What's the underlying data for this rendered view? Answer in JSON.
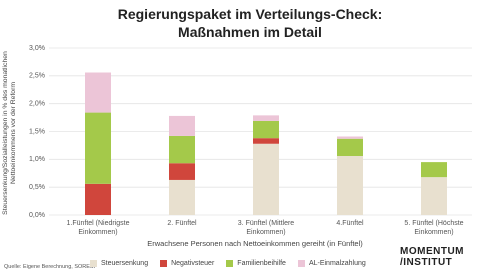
{
  "chart_data": {
    "type": "stacked_bar",
    "title": "Regierungspaket im Verteilungs-Check: Maßnahmen im Detail",
    "y_label": "Steuersenkung/Sozialleistungen in % des monatlichen Nettoeinkommens vor der Reform",
    "x_label": "Erwachsene Personen nach Nettoeinkommen gereiht (in Fünftel)",
    "source": "Quelle: Eigene Berechnung, SORESI",
    "logo": "MOMENTUM /INSTITUT",
    "categories": [
      "1.Fünftel (Niedrigste Einkommen)",
      "2. Fünftel",
      "3. Fünftel (Mittlere Einkommen)",
      "4.Fünftel",
      "5. Fünftel (Höchste Einkommen)"
    ],
    "series": [
      {
        "name": "Steuersenkung",
        "color": "#e8e0cf",
        "values": [
          0,
          0.63,
          1.28,
          1.06,
          0.68
        ]
      },
      {
        "name": "Negativsteuer",
        "color": "#d0463c",
        "values": [
          0.56,
          0.3,
          0.1,
          0,
          0
        ]
      },
      {
        "name": "Familienbeihilfe",
        "color": "#a4c94a",
        "values": [
          1.28,
          0.49,
          0.31,
          0.31,
          0.27
        ]
      },
      {
        "name": "AL-Einmalzahlung",
        "color": "#ecc5d7",
        "values": [
          0.72,
          0.36,
          0.1,
          0.04,
          0
        ]
      }
    ],
    "ylim": [
      0,
      3
    ],
    "yticks": [
      {
        "value": 0,
        "label": "0,0%"
      },
      {
        "value": 0.5,
        "label": "0,5%"
      },
      {
        "value": 1,
        "label": "1,0%"
      },
      {
        "value": 1.5,
        "label": "1,5%"
      },
      {
        "value": 2,
        "label": "2,0%"
      },
      {
        "value": 2.5,
        "label": "2,5%"
      },
      {
        "value": 3,
        "label": "3,0%"
      }
    ],
    "grid": true
  }
}
